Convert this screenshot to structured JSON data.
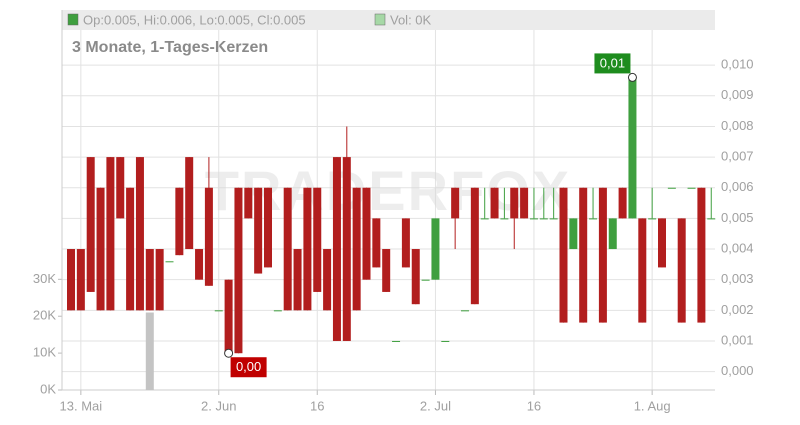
{
  "chart_data": {
    "type": "candlestick",
    "subtitle": "3 Monate, 1-Tages-Kerzen",
    "watermark": "TRADERFOX",
    "legend": [
      {
        "label": "Op:0.005, Hi:0.006, Lo:0.005, Cl:0.005",
        "color": "#3f9f3f"
      },
      {
        "label": "Vol: 0K",
        "color": "#a6d8a6"
      }
    ],
    "categories": [
      null,
      "13. Mai",
      null,
      null,
      null,
      null,
      null,
      null,
      null,
      null,
      null,
      null,
      null,
      null,
      null,
      "2. Jun",
      null,
      null,
      null,
      null,
      null,
      null,
      null,
      null,
      null,
      "16",
      null,
      null,
      null,
      null,
      null,
      null,
      null,
      null,
      null,
      null,
      null,
      "2. Jul",
      null,
      null,
      null,
      null,
      null,
      null,
      null,
      null,
      null,
      "16",
      null,
      null,
      null,
      null,
      null,
      null,
      null,
      null,
      null,
      null,
      null,
      "1. Aug",
      null,
      null,
      null,
      null,
      null,
      null
    ],
    "open": [
      0.004,
      0.004,
      0.007,
      0.006,
      0.007,
      0.007,
      0.006,
      0.007,
      0.004,
      0.004,
      0.0036,
      0.006,
      0.007,
      0.004,
      0.006,
      0.002,
      0.003,
      0.006,
      0.006,
      0.006,
      0.006,
      0.002,
      0.006,
      0.004,
      0.006,
      0.006,
      0.004,
      0.007,
      0.007,
      0.006,
      0.006,
      0.005,
      0.004,
      0.001,
      0.005,
      0.004,
      0.003,
      0.003,
      0.001,
      0.006,
      0.002,
      0.006,
      0.005,
      0.006,
      0.005,
      0.006,
      0.006,
      0.005,
      0.005,
      0.005,
      0.006,
      0.004,
      0.006,
      0.005,
      0.006,
      0.004,
      0.006,
      0.005,
      0.005,
      0.005,
      0.005,
      0.006,
      0.005,
      0.006,
      0.006,
      0.005
    ],
    "high": [
      0.004,
      0.004,
      0.007,
      0.006,
      0.007,
      0.007,
      0.006,
      0.007,
      0.004,
      0.004,
      0.0036,
      0.006,
      0.007,
      0.004,
      0.007,
      0.002,
      0.003,
      0.006,
      0.006,
      0.006,
      0.006,
      0.002,
      0.006,
      0.004,
      0.006,
      0.006,
      0.004,
      0.007,
      0.008,
      0.006,
      0.006,
      0.005,
      0.004,
      0.001,
      0.005,
      0.004,
      0.003,
      0.005,
      0.001,
      0.006,
      0.002,
      0.006,
      0.006,
      0.006,
      0.006,
      0.006,
      0.006,
      0.006,
      0.006,
      0.006,
      0.006,
      0.005,
      0.006,
      0.006,
      0.006,
      0.005,
      0.006,
      0.0096,
      0.005,
      0.006,
      0.005,
      0.006,
      0.005,
      0.006,
      0.006,
      0.006
    ],
    "low": [
      0.002,
      0.002,
      0.0026,
      0.002,
      0.002,
      0.005,
      0.002,
      0.002,
      0.002,
      0.002,
      0.0036,
      0.0038,
      0.004,
      0.003,
      0.0028,
      0.002,
      0.0006,
      0.0006,
      0.005,
      0.0032,
      0.0034,
      0.002,
      0.002,
      0.002,
      0.002,
      0.0026,
      0.002,
      0.001,
      0.001,
      0.002,
      0.003,
      0.0034,
      0.0026,
      0.001,
      0.0034,
      0.0022,
      0.003,
      0.003,
      0.001,
      0.004,
      0.002,
      0.0022,
      0.005,
      0.005,
      0.005,
      0.004,
      0.005,
      0.005,
      0.005,
      0.005,
      0.0016,
      0.004,
      0.0016,
      0.005,
      0.0016,
      0.004,
      0.005,
      0.005,
      0.0016,
      0.005,
      0.0034,
      0.006,
      0.0016,
      0.006,
      0.0016,
      0.005
    ],
    "close": [
      0.002,
      0.002,
      0.0026,
      0.002,
      0.002,
      0.005,
      0.002,
      0.002,
      0.002,
      0.002,
      0.0036,
      0.0038,
      0.004,
      0.003,
      0.0028,
      0.002,
      0.0006,
      0.0006,
      0.005,
      0.0032,
      0.0034,
      0.002,
      0.002,
      0.002,
      0.002,
      0.0026,
      0.002,
      0.001,
      0.001,
      0.002,
      0.003,
      0.0034,
      0.0026,
      0.001,
      0.0034,
      0.0022,
      0.003,
      0.005,
      0.001,
      0.005,
      0.002,
      0.0022,
      0.005,
      0.005,
      0.005,
      0.005,
      0.005,
      0.005,
      0.005,
      0.005,
      0.0016,
      0.005,
      0.0016,
      0.005,
      0.0016,
      0.005,
      0.005,
      0.0096,
      0.0016,
      0.005,
      0.0034,
      0.006,
      0.0016,
      0.006,
      0.0016,
      0.005
    ],
    "up_color": "#3f9f3f",
    "down_color": "#b21e1e",
    "volume": {
      "color": "#c4c4c4",
      "values": [
        0,
        0,
        0,
        0,
        0,
        0,
        0,
        0,
        21000,
        0,
        0,
        0,
        0,
        0,
        0,
        0,
        0,
        0,
        0,
        0,
        0,
        0,
        0,
        0,
        0,
        0,
        0,
        0,
        0,
        0,
        0,
        0,
        0,
        0,
        0,
        0,
        0,
        0,
        0,
        0,
        0,
        0,
        0,
        0,
        0,
        0,
        0,
        0,
        0,
        0,
        0,
        0,
        0,
        0,
        0,
        0,
        0,
        0,
        0,
        0,
        0,
        0,
        0,
        0,
        0,
        0
      ]
    },
    "annotations": [
      {
        "label": "0,01",
        "value": 0.0096,
        "color": "#1e8c1e"
      },
      {
        "label": "0,00",
        "value": 0.0006,
        "color": "#c00000"
      }
    ],
    "ylim": [
      -0.0006,
      0.0118
    ],
    "yticks": [
      {
        "value": 0,
        "label": "0,000"
      },
      {
        "value": 0.001,
        "label": "0,001"
      },
      {
        "value": 0.002,
        "label": "0,002"
      },
      {
        "value": 0.003,
        "label": "0,003"
      },
      {
        "value": 0.004,
        "label": "0,004"
      },
      {
        "value": 0.005,
        "label": "0,005"
      },
      {
        "value": 0.006,
        "label": "0,006"
      },
      {
        "value": 0.007,
        "label": "0,007"
      },
      {
        "value": 0.008,
        "label": "0,008"
      },
      {
        "value": 0.009,
        "label": "0,009"
      },
      {
        "value": 0.01,
        "label": "0,010"
      }
    ],
    "y2lim": [
      0,
      103000
    ],
    "y2ticks": [
      {
        "value": 0,
        "label": "0K"
      },
      {
        "value": 10000,
        "label": "10K"
      },
      {
        "value": 20000,
        "label": "20K"
      },
      {
        "value": 30000,
        "label": "30K"
      }
    ],
    "grid": true
  }
}
